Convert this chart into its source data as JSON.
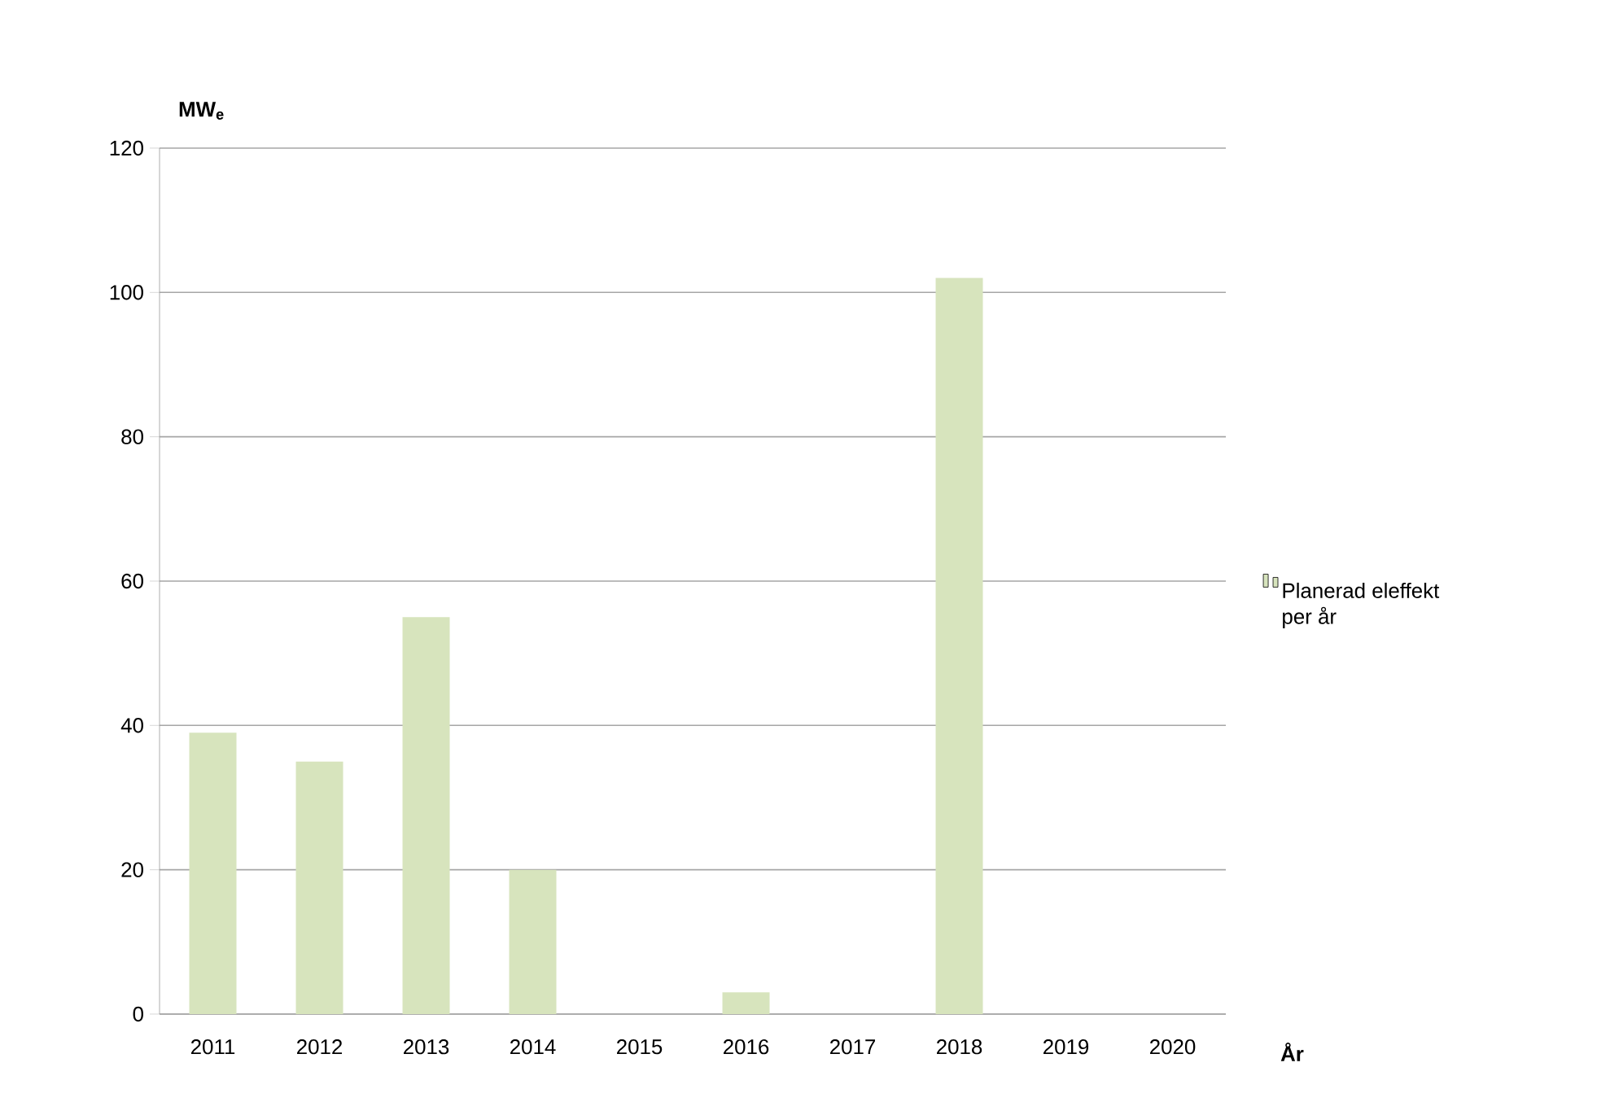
{
  "chart_data": {
    "type": "bar",
    "xlabel": "År",
    "ylabel": "MW$_{e}$",
    "categories": [
      "2011",
      "2012",
      "2013",
      "2014",
      "2015",
      "2016",
      "2017",
      "2018",
      "2019",
      "2020"
    ],
    "series": [
      {
        "name": "Planerad eleffekt per år",
        "color": "#d7e4bd",
        "values": [
          39,
          35,
          55,
          20,
          0,
          3,
          0,
          102,
          0,
          0
        ]
      }
    ],
    "ylim": [
      0,
      120
    ],
    "yticks": [
      0,
      20,
      40,
      60,
      80,
      100,
      120
    ],
    "grid": "y",
    "legend": "right"
  }
}
